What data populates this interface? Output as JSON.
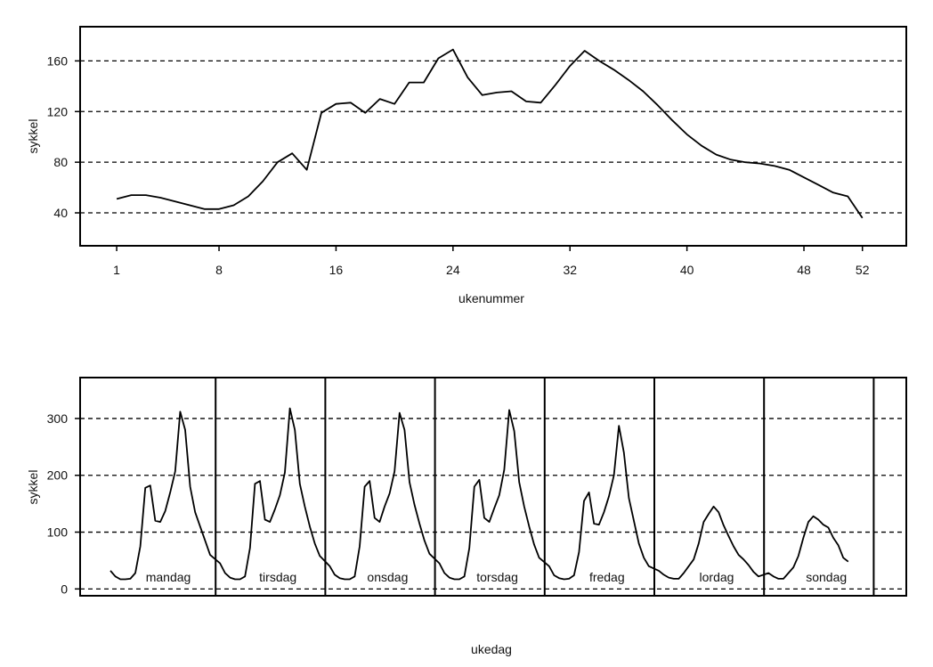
{
  "chart_data": [
    {
      "type": "line",
      "xlabel": "ukenummer",
      "ylabel": "sykkel",
      "xlim": [
        -1.5,
        55
      ],
      "ylim": [
        14,
        187
      ],
      "x_ticks": [
        1,
        8,
        16,
        24,
        32,
        40,
        48,
        52
      ],
      "y_ticks": [
        40,
        80,
        120,
        160
      ],
      "grid": "horizontal-dashed",
      "series": [
        {
          "x": [
            1,
            2,
            3,
            4,
            5,
            6,
            7,
            8,
            9,
            10,
            11,
            12,
            13,
            14,
            15,
            16,
            17,
            18,
            19,
            20,
            21,
            22,
            23,
            24,
            25,
            26,
            27,
            28,
            29,
            30,
            31,
            32,
            33,
            34,
            35,
            36,
            37,
            38,
            39,
            40,
            41,
            42,
            43,
            44,
            45,
            46,
            47,
            48,
            49,
            50,
            51,
            52
          ],
          "values": [
            51,
            54,
            54,
            52,
            49,
            46,
            43,
            43,
            46,
            53,
            65,
            80,
            87,
            74,
            119,
            126,
            127,
            119,
            130,
            126,
            143,
            143,
            162,
            169,
            147,
            133,
            135,
            136,
            128,
            127,
            141,
            156,
            168,
            160,
            153,
            145,
            136,
            125,
            113,
            102,
            93,
            86,
            82,
            80,
            79,
            77,
            74,
            68,
            62,
            56,
            53,
            36
          ]
        }
      ]
    },
    {
      "type": "line",
      "xlabel": "ukedag",
      "ylabel": "sykkel",
      "ylim": [
        -12,
        372
      ],
      "y_ticks": [
        0,
        100,
        200,
        300
      ],
      "grid": "horizontal-dashed",
      "categories": [
        "mandag",
        "tirsdag",
        "onsdag",
        "torsdag",
        "fredag",
        "lordag",
        "sondag"
      ],
      "series": [
        {
          "hourly_values": [
            [
              32,
              22,
              17,
              17,
              18,
              28,
              75,
              178,
              182,
              120,
              118,
              137,
              170,
              207,
              312,
              280,
              180,
              135,
              110,
              85,
              60
            ],
            [
              45,
              28,
              20,
              17,
              17,
              22,
              72,
              185,
              190,
              122,
              118,
              140,
              165,
              205,
              318,
              280,
              185,
              145,
              110,
              80,
              58
            ],
            [
              40,
              25,
              19,
              17,
              17,
              22,
              75,
              180,
              190,
              125,
              118,
              145,
              168,
              207,
              310,
              280,
              188,
              148,
              115,
              85,
              62
            ],
            [
              45,
              28,
              20,
              17,
              17,
              22,
              72,
              180,
              192,
              125,
              118,
              142,
              165,
              210,
              315,
              278,
              188,
              145,
              110,
              78,
              55
            ],
            [
              40,
              24,
              19,
              17,
              18,
              24,
              65,
              155,
              170,
              115,
              113,
              135,
              163,
              200,
              287,
              240,
              160,
              120,
              80,
              55,
              40
            ],
            [
              32,
              25,
              20,
              18,
              18,
              28,
              40,
              52,
              80,
              118,
              132,
              145,
              135,
              112,
              93,
              75,
              60,
              52,
              42,
              30,
              22
            ],
            [
              28,
              22,
              18,
              18,
              28,
              38,
              58,
              90,
              118,
              128,
              122,
              113,
              108,
              90,
              77,
              55,
              48
            ]
          ]
        }
      ]
    }
  ]
}
